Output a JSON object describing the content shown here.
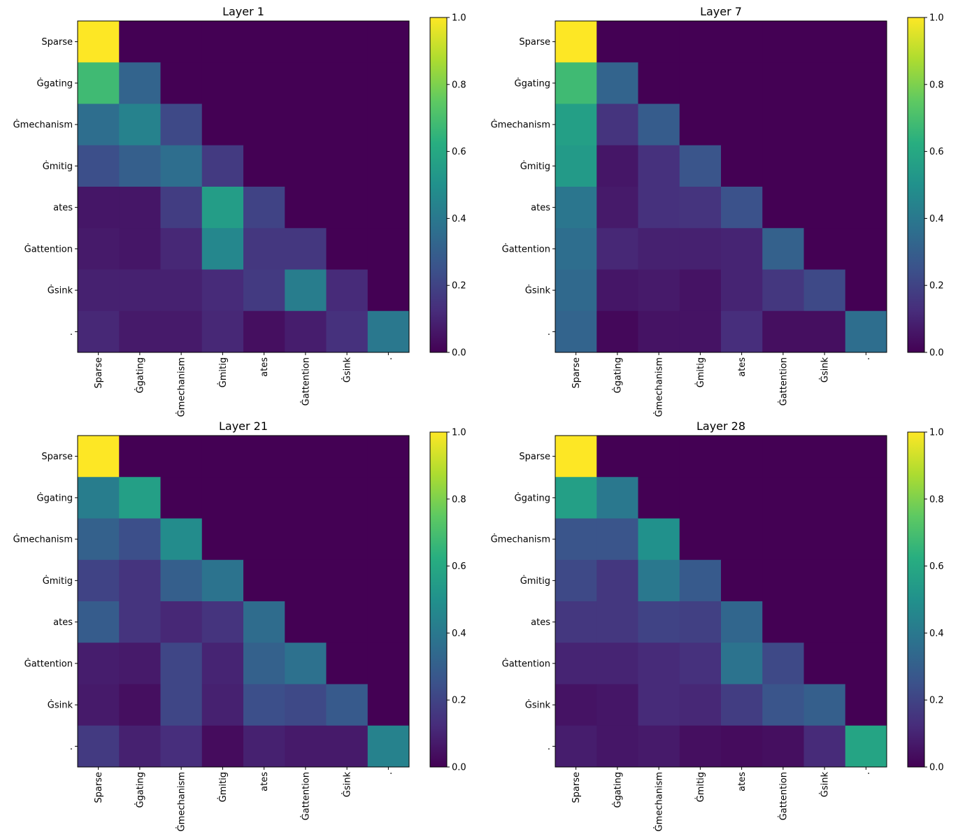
{
  "chart_data": [
    {
      "type": "heatmap",
      "title": "Layer 1",
      "x_labels": [
        "Sparse",
        "Ġgating",
        "Ġmechanism",
        "Ġmitig",
        "ates",
        "Ġattention",
        "Ġsink",
        "."
      ],
      "y_labels": [
        "Sparse",
        "Ġgating",
        "Ġmechanism",
        "Ġmitig",
        "ates",
        "Ġattention",
        "Ġsink",
        "."
      ],
      "values": [
        [
          1.0,
          0.0,
          0.0,
          0.0,
          0.0,
          0.0,
          0.0,
          0.0
        ],
        [
          0.68,
          0.32,
          0.0,
          0.0,
          0.0,
          0.0,
          0.0,
          0.0
        ],
        [
          0.36,
          0.44,
          0.22,
          0.0,
          0.0,
          0.0,
          0.0,
          0.0
        ],
        [
          0.24,
          0.3,
          0.36,
          0.17,
          0.0,
          0.0,
          0.0,
          0.0
        ],
        [
          0.06,
          0.06,
          0.18,
          0.55,
          0.2,
          0.0,
          0.0,
          0.0
        ],
        [
          0.07,
          0.06,
          0.11,
          0.46,
          0.16,
          0.16,
          0.0,
          0.0
        ],
        [
          0.09,
          0.09,
          0.09,
          0.12,
          0.17,
          0.42,
          0.12,
          0.0
        ],
        [
          0.11,
          0.07,
          0.07,
          0.11,
          0.04,
          0.08,
          0.14,
          0.4
        ]
      ],
      "colorbar": {
        "range": [
          0,
          1
        ],
        "ticks": [
          "0.0",
          "0.2",
          "0.4",
          "0.6",
          "0.8",
          "1.0"
        ],
        "colormap": "viridis"
      }
    },
    {
      "type": "heatmap",
      "title": "Layer 7",
      "x_labels": [
        "Sparse",
        "Ġgating",
        "Ġmechanism",
        "Ġmitig",
        "ates",
        "Ġattention",
        "Ġsink",
        "."
      ],
      "y_labels": [
        "Sparse",
        "Ġgating",
        "Ġmechanism",
        "Ġmitig",
        "ates",
        "Ġattention",
        "Ġsink",
        "."
      ],
      "values": [
        [
          1.0,
          0.0,
          0.0,
          0.0,
          0.0,
          0.0,
          0.0,
          0.0
        ],
        [
          0.68,
          0.32,
          0.0,
          0.0,
          0.0,
          0.0,
          0.0,
          0.0
        ],
        [
          0.56,
          0.15,
          0.29,
          0.0,
          0.0,
          0.0,
          0.0,
          0.0
        ],
        [
          0.54,
          0.06,
          0.14,
          0.26,
          0.0,
          0.0,
          0.0,
          0.0
        ],
        [
          0.39,
          0.07,
          0.14,
          0.15,
          0.25,
          0.0,
          0.0,
          0.0
        ],
        [
          0.36,
          0.11,
          0.09,
          0.09,
          0.1,
          0.31,
          0.0,
          0.0
        ],
        [
          0.34,
          0.06,
          0.07,
          0.05,
          0.1,
          0.16,
          0.22,
          0.0
        ],
        [
          0.32,
          0.02,
          0.05,
          0.05,
          0.13,
          0.04,
          0.04,
          0.36
        ]
      ],
      "colorbar": {
        "range": [
          0,
          1
        ],
        "ticks": [
          "0.0",
          "0.2",
          "0.4",
          "0.6",
          "0.8",
          "1.0"
        ],
        "colormap": "viridis"
      }
    },
    {
      "type": "heatmap",
      "title": "Layer 21",
      "x_labels": [
        "Sparse",
        "Ġgating",
        "Ġmechanism",
        "Ġmitig",
        "ates",
        "Ġattention",
        "Ġsink",
        "."
      ],
      "y_labels": [
        "Sparse",
        "Ġgating",
        "Ġmechanism",
        "Ġmitig",
        "ates",
        "Ġattention",
        "Ġsink",
        "."
      ],
      "values": [
        [
          1.0,
          0.0,
          0.0,
          0.0,
          0.0,
          0.0,
          0.0,
          0.0
        ],
        [
          0.42,
          0.56,
          0.0,
          0.0,
          0.0,
          0.0,
          0.0,
          0.0
        ],
        [
          0.31,
          0.24,
          0.48,
          0.0,
          0.0,
          0.0,
          0.0,
          0.0
        ],
        [
          0.2,
          0.15,
          0.3,
          0.38,
          0.0,
          0.0,
          0.0,
          0.0
        ],
        [
          0.29,
          0.15,
          0.11,
          0.15,
          0.35,
          0.0,
          0.0,
          0.0
        ],
        [
          0.08,
          0.07,
          0.21,
          0.1,
          0.31,
          0.37,
          0.0,
          0.0
        ],
        [
          0.07,
          0.04,
          0.21,
          0.09,
          0.24,
          0.22,
          0.28,
          0.0
        ],
        [
          0.17,
          0.09,
          0.13,
          0.03,
          0.09,
          0.07,
          0.07,
          0.44
        ]
      ],
      "colorbar": {
        "range": [
          0,
          1
        ],
        "ticks": [
          "0.0",
          "0.2",
          "0.4",
          "0.6",
          "0.8",
          "1.0"
        ],
        "colormap": "viridis"
      }
    },
    {
      "type": "heatmap",
      "title": "Layer 28",
      "x_labels": [
        "Sparse",
        "Ġgating",
        "Ġmechanism",
        "Ġmitig",
        "ates",
        "Ġattention",
        "Ġsink",
        "."
      ],
      "y_labels": [
        "Sparse",
        "Ġgating",
        "Ġmechanism",
        "Ġmitig",
        "ates",
        "Ġattention",
        "Ġsink",
        "."
      ],
      "values": [
        [
          1.0,
          0.0,
          0.0,
          0.0,
          0.0,
          0.0,
          0.0,
          0.0
        ],
        [
          0.56,
          0.4,
          0.0,
          0.0,
          0.0,
          0.0,
          0.0,
          0.0
        ],
        [
          0.26,
          0.26,
          0.5,
          0.0,
          0.0,
          0.0,
          0.0,
          0.0
        ],
        [
          0.22,
          0.16,
          0.4,
          0.28,
          0.0,
          0.0,
          0.0,
          0.0
        ],
        [
          0.16,
          0.16,
          0.2,
          0.19,
          0.33,
          0.0,
          0.0,
          0.0
        ],
        [
          0.1,
          0.1,
          0.12,
          0.14,
          0.38,
          0.22,
          0.0,
          0.0
        ],
        [
          0.05,
          0.06,
          0.12,
          0.11,
          0.18,
          0.26,
          0.3,
          0.0
        ],
        [
          0.08,
          0.06,
          0.07,
          0.04,
          0.03,
          0.04,
          0.12,
          0.58
        ]
      ],
      "colorbar": {
        "range": [
          0,
          1
        ],
        "ticks": [
          "0.0",
          "0.2",
          "0.4",
          "0.6",
          "0.8",
          "1.0"
        ],
        "colormap": "viridis"
      }
    }
  ]
}
